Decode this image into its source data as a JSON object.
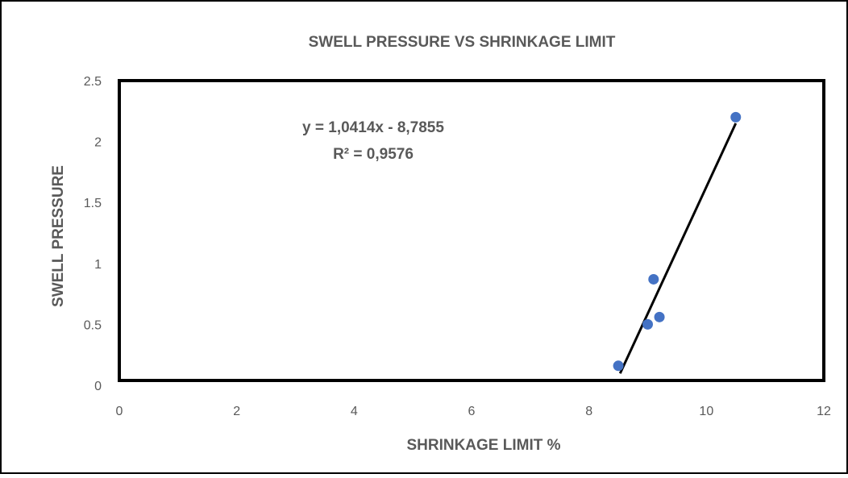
{
  "chart_data": {
    "type": "scatter",
    "title": "SWELL PRESSURE VS SHRINKAGE LIMIT",
    "xlabel": "SHRINKAGE LIMIT  %",
    "ylabel": "SWELL PRESSURE",
    "xlim": [
      0,
      12
    ],
    "ylim": [
      0,
      2.5
    ],
    "x_ticks": [
      "0",
      "2",
      "4",
      "6",
      "8",
      "10",
      "12"
    ],
    "y_ticks": [
      "0",
      "0.5",
      "1",
      "1.5",
      "2",
      "2.5"
    ],
    "points": [
      {
        "x": 8.5,
        "y": 0.16
      },
      {
        "x": 9.0,
        "y": 0.5
      },
      {
        "x": 9.1,
        "y": 0.87
      },
      {
        "x": 9.2,
        "y": 0.56
      },
      {
        "x": 10.5,
        "y": 2.2
      }
    ],
    "trendline": {
      "type": "linear",
      "slope": 1.0414,
      "intercept": -8.7855,
      "equation": "y = 1,0414x - 8,7855",
      "r_squared": "R² = 0,9576"
    },
    "grid": false,
    "legend": "none",
    "colors": {
      "marker": "#4472C4",
      "trendline": "#000000",
      "text": "#595959",
      "plot_border": "#000000"
    }
  }
}
